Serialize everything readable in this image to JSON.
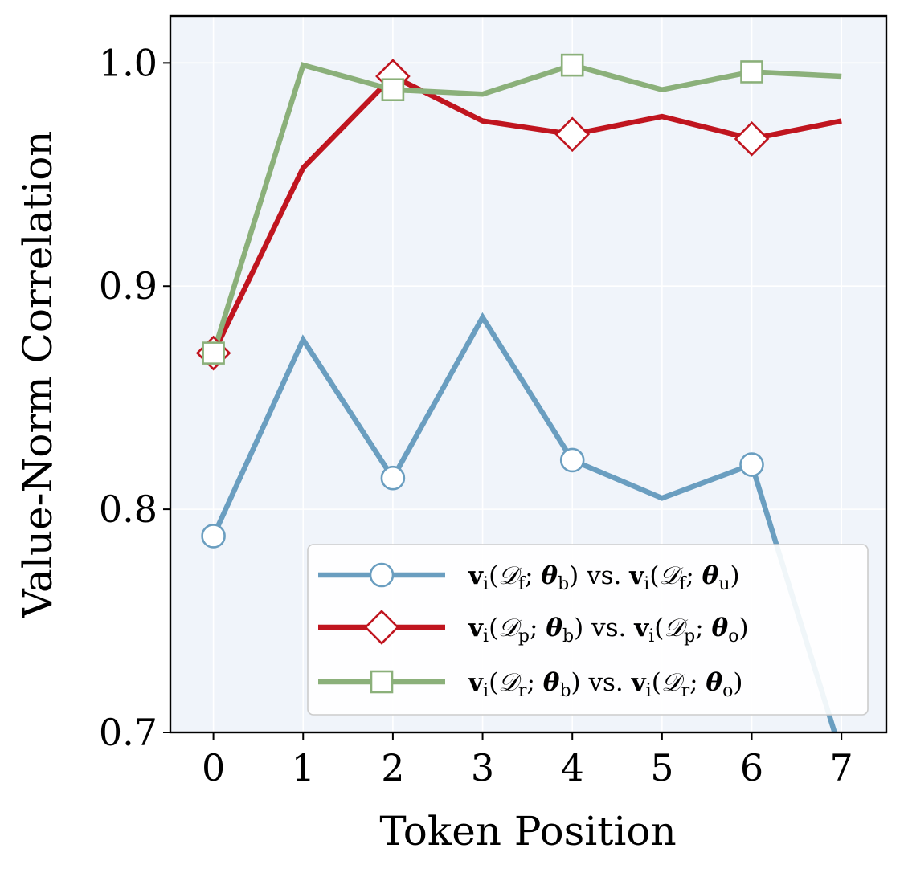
{
  "chart_data": {
    "type": "line",
    "xlabel": "Token Position",
    "ylabel": "Value-Norm Correlation",
    "xlim": [
      -0.48,
      7.5
    ],
    "ylim": [
      0.7,
      1.021
    ],
    "xticks": [
      "0",
      "1",
      "2",
      "3",
      "4",
      "5",
      "6",
      "7"
    ],
    "yticks": [
      "0.7",
      "0.8",
      "0.9",
      "1.0"
    ],
    "grid": true,
    "legend_position": "lower-right",
    "colors": {
      "plot_bg": "#f0f4fa",
      "grid": "#ffffff"
    },
    "x": [
      0,
      1,
      2,
      3,
      4,
      5,
      6,
      7
    ],
    "series": [
      {
        "name": "vi(Df; θb) vs. vi(Df; θu)",
        "legend": {
          "v": "v",
          "i1": "i",
          "D1": "𝒟",
          "s1": "f",
          "theta1": "θ",
          "t1": "b",
          "vs": "vs.",
          "v2": "v",
          "i2": "i",
          "D2": "𝒟",
          "s2": "f",
          "theta2": "θ",
          "t2": "u"
        },
        "color": "#6a9ec0",
        "marker": "circle",
        "values": [
          0.788,
          0.876,
          0.814,
          0.886,
          0.822,
          0.805,
          0.82,
          0.69
        ],
        "marker_indices": [
          0,
          2,
          4,
          6
        ]
      },
      {
        "name": "vi(Dp; θb) vs. vi(Dp; θo)",
        "legend": {
          "v": "v",
          "i1": "i",
          "D1": "𝒟",
          "s1": "p",
          "theta1": "θ",
          "t1": "b",
          "vs": "vs.",
          "v2": "v",
          "i2": "i",
          "D2": "𝒟",
          "s2": "p",
          "theta2": "θ",
          "t2": "o"
        },
        "color": "#c0151f",
        "marker": "diamond",
        "values": [
          0.87,
          0.953,
          0.994,
          0.974,
          0.968,
          0.976,
          0.966,
          0.974
        ],
        "marker_indices": [
          0,
          2,
          4,
          6
        ]
      },
      {
        "name": "vi(Dr; θb) vs. vi(Dr; θo)",
        "legend": {
          "v": "v",
          "i1": "i",
          "D1": "𝒟",
          "s1": "r",
          "theta1": "θ",
          "t1": "b",
          "vs": "vs.",
          "v2": "v",
          "i2": "i",
          "D2": "𝒟",
          "s2": "r",
          "theta2": "θ",
          "t2": "o"
        },
        "color": "#8bb07a",
        "marker": "square",
        "values": [
          0.87,
          0.999,
          0.988,
          0.986,
          0.999,
          0.988,
          0.996,
          0.994
        ],
        "marker_indices": [
          0,
          2,
          4,
          6
        ]
      }
    ]
  }
}
